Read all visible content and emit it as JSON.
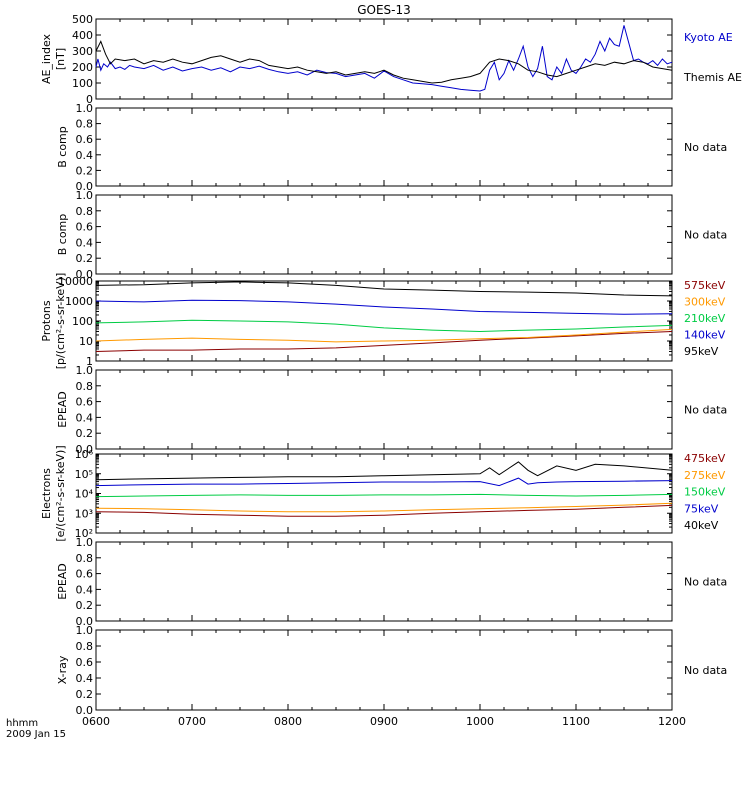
{
  "title": "GOES-13",
  "time_axis": {
    "label_line1": "hhmm",
    "label_line2": "2009 Jan 15",
    "ticks": [
      "0600",
      "0700",
      "0800",
      "0900",
      "1000",
      "1100",
      "1200"
    ],
    "range_hours": [
      6,
      12
    ]
  },
  "chart_data": [
    {
      "type": "line",
      "panel": "ae",
      "ylabel_lines": [
        "AE_index",
        "[nT]"
      ],
      "yscale": "linear",
      "ylim": [
        0,
        500
      ],
      "yticks": [
        "0",
        "100",
        "200",
        "300",
        "400",
        "500"
      ],
      "series": [
        {
          "name": "Kyoto AE",
          "color": "#0000cc",
          "x": [
            6.0,
            6.02,
            6.05,
            6.08,
            6.12,
            6.15,
            6.2,
            6.25,
            6.3,
            6.35,
            6.4,
            6.5,
            6.6,
            6.7,
            6.8,
            6.9,
            7.0,
            7.1,
            7.2,
            7.3,
            7.4,
            7.5,
            7.6,
            7.7,
            7.8,
            7.9,
            8.0,
            8.1,
            8.2,
            8.3,
            8.4,
            8.5,
            8.6,
            8.7,
            8.8,
            8.9,
            9.0,
            9.1,
            9.2,
            9.3,
            9.4,
            9.5,
            9.6,
            9.7,
            9.8,
            9.9,
            10.0,
            10.05,
            10.1,
            10.15,
            10.2,
            10.25,
            10.3,
            10.35,
            10.4,
            10.45,
            10.5,
            10.55,
            10.6,
            10.65,
            10.7,
            10.75,
            10.8,
            10.85,
            10.9,
            10.95,
            11.0,
            11.05,
            11.1,
            11.15,
            11.2,
            11.25,
            11.3,
            11.35,
            11.4,
            11.45,
            11.5,
            11.55,
            11.6,
            11.65,
            11.7,
            11.75,
            11.8,
            11.85,
            11.9,
            11.95,
            12.0
          ],
          "y": [
            200,
            250,
            180,
            220,
            200,
            230,
            190,
            200,
            185,
            210,
            200,
            190,
            210,
            180,
            200,
            175,
            190,
            200,
            180,
            195,
            170,
            200,
            190,
            205,
            185,
            170,
            160,
            170,
            150,
            180,
            165,
            160,
            140,
            150,
            160,
            130,
            175,
            140,
            120,
            100,
            95,
            90,
            80,
            70,
            60,
            55,
            50,
            60,
            180,
            230,
            120,
            160,
            240,
            180,
            250,
            330,
            200,
            140,
            190,
            330,
            140,
            120,
            200,
            160,
            250,
            180,
            160,
            200,
            250,
            230,
            280,
            360,
            300,
            380,
            340,
            330,
            460,
            350,
            240,
            250,
            230,
            220,
            240,
            210,
            250,
            220,
            230
          ]
        },
        {
          "name": "Themis AE",
          "color": "#000000",
          "x": [
            6.0,
            6.05,
            6.1,
            6.15,
            6.2,
            6.3,
            6.4,
            6.5,
            6.6,
            6.7,
            6.8,
            6.9,
            7.0,
            7.1,
            7.2,
            7.3,
            7.4,
            7.5,
            7.6,
            7.7,
            7.8,
            7.9,
            8.0,
            8.1,
            8.2,
            8.3,
            8.4,
            8.5,
            8.6,
            8.7,
            8.8,
            8.9,
            9.0,
            9.1,
            9.2,
            9.3,
            9.4,
            9.5,
            9.6,
            9.7,
            9.8,
            9.9,
            10.0,
            10.1,
            10.2,
            10.3,
            10.4,
            10.5,
            10.6,
            10.7,
            10.8,
            10.9,
            11.0,
            11.1,
            11.2,
            11.3,
            11.4,
            11.5,
            11.6,
            11.7,
            11.8,
            11.9,
            12.0
          ],
          "y": [
            300,
            360,
            280,
            220,
            250,
            240,
            250,
            220,
            240,
            230,
            250,
            230,
            220,
            240,
            260,
            270,
            250,
            230,
            250,
            240,
            210,
            200,
            190,
            200,
            180,
            170,
            160,
            170,
            150,
            160,
            170,
            160,
            180,
            150,
            130,
            120,
            110,
            100,
            105,
            120,
            130,
            140,
            160,
            230,
            250,
            240,
            220,
            180,
            170,
            150,
            140,
            160,
            180,
            200,
            220,
            210,
            230,
            220,
            240,
            230,
            200,
            190,
            180
          ]
        }
      ]
    },
    {
      "type": "line",
      "panel": "bcomp1",
      "ylabel_lines": [
        "B comp"
      ],
      "yscale": "linear",
      "ylim": [
        0,
        1
      ],
      "yticks": [
        "0.0",
        "0.2",
        "0.4",
        "0.6",
        "0.8",
        "1.0"
      ],
      "note": "No data",
      "series": []
    },
    {
      "type": "line",
      "panel": "bcomp2",
      "ylabel_lines": [
        "B comp"
      ],
      "yscale": "linear",
      "ylim": [
        0,
        1
      ],
      "yticks": [
        "0.0",
        "0.2",
        "0.4",
        "0.6",
        "0.8",
        "1.0"
      ],
      "note": "No data",
      "series": []
    },
    {
      "type": "line",
      "panel": "protons",
      "ylabel_lines": [
        "Protons",
        "[p/(cm²-s-sr-keV)]"
      ],
      "yscale": "log",
      "ylim": [
        1,
        10000
      ],
      "yticks": [
        "1",
        "10",
        "100",
        "1000",
        "10000"
      ],
      "series": [
        {
          "name": "575keV",
          "color": "#8b0000",
          "x": [
            6.0,
            6.5,
            7.0,
            7.5,
            8.0,
            8.5,
            9.0,
            9.5,
            10.0,
            10.5,
            11.0,
            11.5,
            12.0
          ],
          "y": [
            3,
            3.5,
            3.5,
            4,
            4,
            4.5,
            6,
            8,
            11,
            14,
            18,
            24,
            30
          ]
        },
        {
          "name": "300keV",
          "color": "#ff9900",
          "x": [
            6.0,
            6.5,
            7.0,
            7.5,
            8.0,
            8.5,
            9.0,
            9.5,
            10.0,
            10.5,
            11.0,
            11.5,
            12.0
          ],
          "y": [
            10,
            12,
            14,
            12,
            11,
            9,
            10,
            11,
            13,
            15,
            20,
            28,
            38
          ]
        },
        {
          "name": "210keV",
          "color": "#00cc44",
          "x": [
            6.0,
            6.5,
            7.0,
            7.5,
            8.0,
            8.5,
            9.0,
            9.5,
            10.0,
            10.5,
            11.0,
            11.5,
            12.0
          ],
          "y": [
            80,
            90,
            110,
            100,
            90,
            70,
            45,
            35,
            30,
            35,
            40,
            50,
            60
          ]
        },
        {
          "name": "140keV",
          "color": "#0000cc",
          "x": [
            6.0,
            6.5,
            7.0,
            7.5,
            8.0,
            8.5,
            9.0,
            9.5,
            10.0,
            10.5,
            11.0,
            11.5,
            12.0
          ],
          "y": [
            1000,
            900,
            1100,
            1050,
            900,
            700,
            500,
            400,
            300,
            270,
            240,
            220,
            230
          ]
        },
        {
          "name": "95keV",
          "color": "#000000",
          "x": [
            6.0,
            6.5,
            7.0,
            7.5,
            8.0,
            8.5,
            9.0,
            9.5,
            10.0,
            10.5,
            11.0,
            11.5,
            12.0
          ],
          "y": [
            6000,
            6500,
            8000,
            9000,
            8000,
            6000,
            4000,
            3500,
            3000,
            2800,
            2500,
            2000,
            1800
          ]
        }
      ]
    },
    {
      "type": "line",
      "panel": "epead1",
      "ylabel_lines": [
        "EPEAD"
      ],
      "yscale": "linear",
      "ylim": [
        0,
        1
      ],
      "yticks": [
        "0.0",
        "0.2",
        "0.4",
        "0.6",
        "0.8",
        "1.0"
      ],
      "note": "No data",
      "series": []
    },
    {
      "type": "line",
      "panel": "electrons",
      "ylabel_lines": [
        "Electrons",
        "[e/(cm²-s-sr-keV)]"
      ],
      "yscale": "log",
      "ylim": [
        100,
        1000000
      ],
      "yticks": [
        "10²",
        "10³",
        "10⁴",
        "10⁵",
        "10⁶"
      ],
      "series": [
        {
          "name": "475keV",
          "color": "#8b0000",
          "x": [
            6.0,
            6.5,
            7.0,
            7.5,
            8.0,
            8.5,
            9.0,
            9.5,
            10.0,
            10.5,
            11.0,
            11.5,
            12.0
          ],
          "y": [
            1200,
            1100,
            900,
            800,
            700,
            700,
            800,
            1000,
            1200,
            1400,
            1600,
            2000,
            2500
          ]
        },
        {
          "name": "275keV",
          "color": "#ff9900",
          "x": [
            6.0,
            6.5,
            7.0,
            7.5,
            8.0,
            8.5,
            9.0,
            9.5,
            10.0,
            10.5,
            11.0,
            11.5,
            12.0
          ],
          "y": [
            1800,
            1700,
            1500,
            1300,
            1200,
            1200,
            1300,
            1500,
            1700,
            1900,
            2200,
            2600,
            3200
          ]
        },
        {
          "name": "150keV",
          "color": "#00cc44",
          "x": [
            6.0,
            6.5,
            7.0,
            7.5,
            8.0,
            8.5,
            9.0,
            9.5,
            10.0,
            10.5,
            11.0,
            11.5,
            12.0
          ],
          "y": [
            7000,
            7500,
            8000,
            8500,
            8000,
            8000,
            8500,
            8500,
            9000,
            8000,
            7500,
            8000,
            9000
          ]
        },
        {
          "name": "75keV",
          "color": "#0000cc",
          "x": [
            6.0,
            6.5,
            7.0,
            7.5,
            8.0,
            8.5,
            9.0,
            9.5,
            10.0,
            10.2,
            10.4,
            10.5,
            10.6,
            10.8,
            11.0,
            11.5,
            12.0
          ],
          "y": [
            25000,
            28000,
            30000,
            30000,
            32000,
            35000,
            38000,
            38000,
            40000,
            25000,
            60000,
            30000,
            35000,
            38000,
            40000,
            42000,
            45000
          ]
        },
        {
          "name": "40keV",
          "color": "#000000",
          "x": [
            6.0,
            6.5,
            7.0,
            7.5,
            8.0,
            8.5,
            9.0,
            9.5,
            10.0,
            10.1,
            10.2,
            10.4,
            10.5,
            10.6,
            10.8,
            11.0,
            11.2,
            11.5,
            12.0
          ],
          "y": [
            50000,
            55000,
            60000,
            65000,
            70000,
            70000,
            80000,
            90000,
            100000,
            200000,
            90000,
            400000,
            150000,
            80000,
            250000,
            150000,
            300000,
            250000,
            150000
          ]
        }
      ]
    },
    {
      "type": "line",
      "panel": "epead2",
      "ylabel_lines": [
        "EPEAD"
      ],
      "yscale": "linear",
      "ylim": [
        0,
        1
      ],
      "yticks": [
        "0.0",
        "0.2",
        "0.4",
        "0.6",
        "0.8",
        "1.0"
      ],
      "note": "No data",
      "series": []
    },
    {
      "type": "line",
      "panel": "xray",
      "ylabel_lines": [
        "X-ray"
      ],
      "yscale": "linear",
      "ylim": [
        0,
        1
      ],
      "yticks": [
        "0.0",
        "0.2",
        "0.4",
        "0.6",
        "0.8",
        "1.0"
      ],
      "note": "No data",
      "series": []
    }
  ]
}
